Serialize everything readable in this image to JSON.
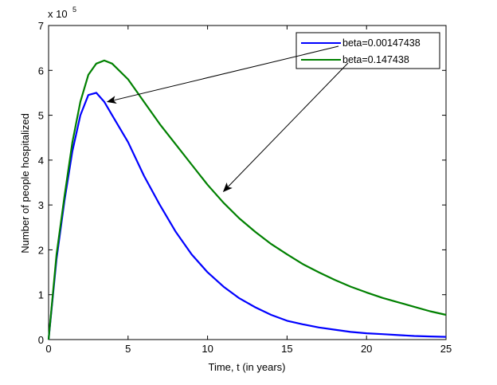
{
  "chart_data": {
    "type": "line",
    "title": "",
    "xlabel": "Time, t (in years)",
    "ylabel": "Number of people hospitalized",
    "xlim": [
      0,
      25
    ],
    "ylim": [
      0,
      7
    ],
    "y_multiplier_label": "x 10",
    "y_multiplier_exponent": "5",
    "x_ticks": [
      "0",
      "5",
      "10",
      "15",
      "20",
      "25"
    ],
    "y_ticks": [
      "0",
      "1",
      "2",
      "3",
      "4",
      "5",
      "6",
      "7"
    ],
    "grid": false,
    "legend_position": "top-right",
    "series": [
      {
        "name": "beta=0.00147438",
        "color": "#0000ff",
        "x": [
          0,
          0.5,
          1,
          1.5,
          2,
          2.5,
          3,
          3.5,
          4,
          5,
          6,
          7,
          8,
          9,
          10,
          11,
          12,
          13,
          14,
          15,
          16,
          17,
          18,
          19,
          20,
          21,
          22,
          23,
          24,
          25
        ],
        "y": [
          0,
          1.8,
          3.1,
          4.2,
          5.0,
          5.45,
          5.5,
          5.3,
          5.0,
          4.4,
          3.65,
          3.0,
          2.4,
          1.9,
          1.5,
          1.18,
          0.92,
          0.72,
          0.55,
          0.42,
          0.34,
          0.27,
          0.22,
          0.17,
          0.14,
          0.12,
          0.1,
          0.08,
          0.07,
          0.06
        ]
      },
      {
        "name": "beta=0.147438",
        "color": "#008000",
        "x": [
          0,
          0.5,
          1,
          1.5,
          2,
          2.5,
          3,
          3.5,
          4,
          5,
          6,
          7,
          8,
          9,
          10,
          11,
          12,
          13,
          14,
          15,
          16,
          17,
          18,
          19,
          20,
          21,
          22,
          23,
          24,
          25
        ],
        "y": [
          0,
          1.9,
          3.2,
          4.4,
          5.3,
          5.9,
          6.15,
          6.22,
          6.15,
          5.8,
          5.3,
          4.8,
          4.35,
          3.9,
          3.45,
          3.05,
          2.7,
          2.4,
          2.13,
          1.9,
          1.68,
          1.5,
          1.33,
          1.18,
          1.05,
          0.93,
          0.83,
          0.73,
          0.63,
          0.55
        ]
      }
    ],
    "annotations": [
      {
        "target_series": "beta=0.00147438",
        "target_x": 3.7,
        "target_y": 5.3
      },
      {
        "target_series": "beta=0.147438",
        "target_x": 11,
        "target_y": 3.3
      }
    ]
  }
}
